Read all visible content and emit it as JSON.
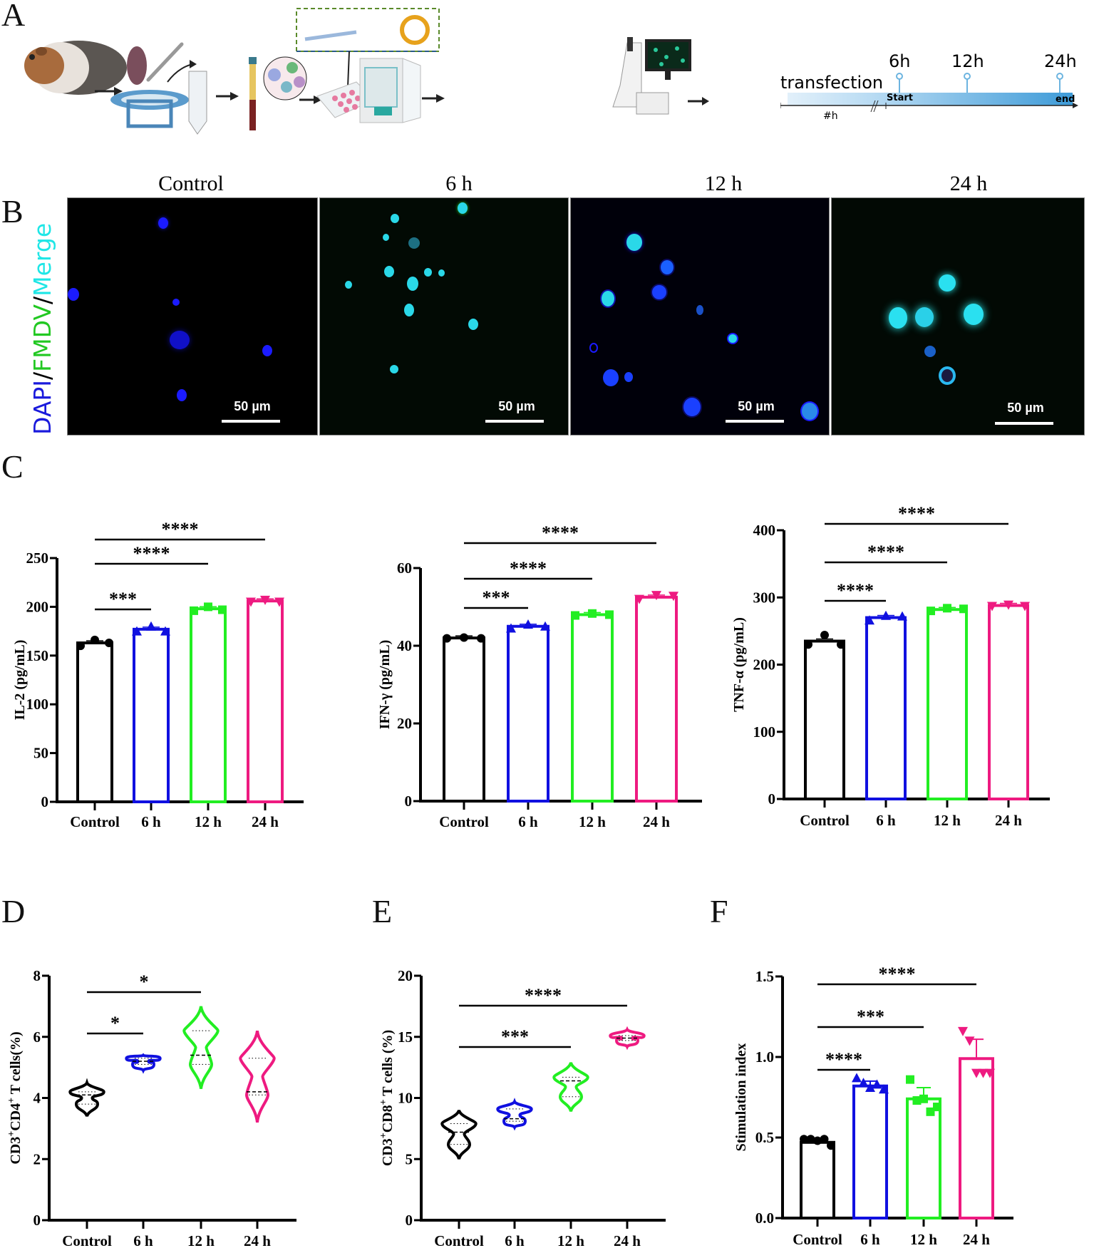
{
  "panels": {
    "A": {
      "letter": "A",
      "timeline": {
        "phase_label": "transfection",
        "pre_duration": "#h",
        "start_label": "Start",
        "end_label": "end",
        "markers": [
          "6h",
          "12h",
          "24h"
        ]
      },
      "workflow_steps": [
        "guinea-pig",
        "spleen-and-cell-strainer",
        "centrifuge-tube",
        "blood-tube-with-lymphocytes",
        "culture-plate-with-plasmid",
        "incubator",
        "fluorescence-microscope"
      ]
    },
    "B": {
      "letter": "B",
      "stain_label": {
        "dapi": "DAPI",
        "sep1": "/",
        "fmdv": "FMDV",
        "sep2": "/",
        "merge": "Merge"
      },
      "stain_colors": {
        "dapi": "#1a1adc",
        "fmdv": "#22c822",
        "merge": "#1ee6e6"
      },
      "images": [
        {
          "title": "Control",
          "scale_bar": "50 µm"
        },
        {
          "title": "6 h",
          "scale_bar": "50 µm"
        },
        {
          "title": "12 h",
          "scale_bar": "50 µm"
        },
        {
          "title": "24 h",
          "scale_bar": "50 µm"
        }
      ]
    },
    "C": {
      "letter": "C"
    },
    "D": {
      "letter": "D"
    },
    "E": {
      "letter": "E"
    },
    "F": {
      "letter": "F"
    }
  },
  "colors": {
    "Control": "#000000",
    "6 h": "#1010e0",
    "12 h": "#22ee22",
    "24 h": "#ee1a80"
  },
  "chart_data": [
    {
      "id": "C-IL2",
      "panel": "C",
      "type": "bar",
      "title": "",
      "xlabel": "",
      "ylabel": "IL-2 (pg/mL)",
      "categories": [
        "Control",
        "6 h",
        "12 h",
        "24 h"
      ],
      "values": [
        163,
        177,
        198,
        206
      ],
      "points": [
        [
          160,
          166,
          163
        ],
        [
          175,
          180,
          175
        ],
        [
          196,
          200,
          197
        ],
        [
          205,
          207,
          205
        ]
      ],
      "markers": [
        "circle",
        "triangle",
        "square",
        "triangle-down"
      ],
      "ylim": [
        0,
        250
      ],
      "yticks": [
        0,
        50,
        100,
        150,
        200,
        250
      ],
      "significance": [
        {
          "from": "Control",
          "to": "6 h",
          "label": "***"
        },
        {
          "from": "Control",
          "to": "12 h",
          "label": "****"
        },
        {
          "from": "Control",
          "to": "24 h",
          "label": "****"
        }
      ],
      "grid": false
    },
    {
      "id": "C-IFNg",
      "panel": "C",
      "type": "bar",
      "title": "",
      "xlabel": "",
      "ylabel": "IFN-γ (pg/mL)",
      "categories": [
        "Control",
        "6 h",
        "12 h",
        "24 h"
      ],
      "values": [
        42,
        45,
        48,
        52.5
      ],
      "points": [
        [
          41.9,
          42.1,
          41.9
        ],
        [
          44.5,
          45.5,
          45.0
        ],
        [
          47.8,
          48.3,
          48.0
        ],
        [
          52.0,
          53.0,
          52.8
        ]
      ],
      "markers": [
        "circle",
        "triangle",
        "square",
        "triangle-down"
      ],
      "ylim": [
        0,
        60
      ],
      "yticks": [
        0,
        20,
        40,
        60
      ],
      "significance": [
        {
          "from": "Control",
          "to": "6 h",
          "label": "***"
        },
        {
          "from": "Control",
          "to": "12 h",
          "label": "****"
        },
        {
          "from": "Control",
          "to": "24 h",
          "label": "****"
        }
      ],
      "grid": false
    },
    {
      "id": "C-TNFa",
      "panel": "C",
      "type": "bar",
      "title": "",
      "xlabel": "",
      "ylabel": "TNF-α (pg/mL)",
      "categories": [
        "Control",
        "6 h",
        "12 h",
        "24 h"
      ],
      "values": [
        235,
        270,
        282,
        288
      ],
      "points": [
        [
          230,
          244,
          230
        ],
        [
          266,
          273,
          272
        ],
        [
          280,
          284,
          283
        ],
        [
          287,
          289,
          287
        ]
      ],
      "markers": [
        "circle",
        "triangle",
        "square",
        "triangle-down"
      ],
      "ylim": [
        0,
        400
      ],
      "yticks": [
        0,
        100,
        200,
        300,
        400
      ],
      "significance": [
        {
          "from": "Control",
          "to": "6 h",
          "label": "****"
        },
        {
          "from": "Control",
          "to": "12 h",
          "label": "****"
        },
        {
          "from": "Control",
          "to": "24 h",
          "label": "****"
        }
      ],
      "grid": false
    },
    {
      "id": "D-CD4",
      "panel": "D",
      "type": "violin",
      "title": "",
      "xlabel": "",
      "ylabel": "CD3+CD4+ T cells(%)",
      "categories": [
        "Control",
        "6 h",
        "12 h",
        "24 h"
      ],
      "median": [
        4.1,
        5.2,
        5.4,
        4.2
      ],
      "q1": [
        3.8,
        5.1,
        5.1,
        4.1
      ],
      "q3": [
        4.2,
        5.3,
        6.2,
        5.3
      ],
      "range": [
        [
          3.4,
          4.5
        ],
        [
          4.9,
          5.4
        ],
        [
          4.3,
          7.0
        ],
        [
          3.2,
          6.2
        ]
      ],
      "ylim": [
        0,
        8
      ],
      "yticks": [
        0,
        2,
        4,
        6,
        8
      ],
      "significance": [
        {
          "from": "Control",
          "to": "6 h",
          "label": "*"
        },
        {
          "from": "Control",
          "to": "12 h",
          "label": "*"
        }
      ],
      "grid": false
    },
    {
      "id": "E-CD8",
      "panel": "E",
      "type": "violin",
      "title": "",
      "xlabel": "",
      "ylabel": "CD3+CD8+ T cells (%)",
      "categories": [
        "Control",
        "6 h",
        "12 h",
        "24 h"
      ],
      "median": [
        7.2,
        8.3,
        11.4,
        14.9
      ],
      "q1": [
        6.2,
        8.1,
        10.1,
        14.7
      ],
      "q3": [
        7.9,
        9.1,
        11.7,
        15.1
      ],
      "range": [
        [
          5.0,
          9.0
        ],
        [
          7.6,
          9.7
        ],
        [
          8.9,
          12.9
        ],
        [
          14.2,
          15.6
        ]
      ],
      "ylim": [
        0,
        20
      ],
      "yticks": [
        0,
        5,
        10,
        15,
        20
      ],
      "significance": [
        {
          "from": "Control",
          "to": "12 h",
          "label": "***"
        },
        {
          "from": "Control",
          "to": "24 h",
          "label": "****"
        }
      ],
      "grid": false
    },
    {
      "id": "F-SI",
      "panel": "F",
      "type": "bar",
      "title": "",
      "xlabel": "",
      "ylabel": "Stimulation index",
      "categories": [
        "Control",
        "6 h",
        "12 h",
        "24 h"
      ],
      "values": [
        0.47,
        0.82,
        0.74,
        0.99
      ],
      "error": [
        0.01,
        0.03,
        0.07,
        0.12
      ],
      "points": [
        [
          0.49,
          0.49,
          0.48,
          0.49,
          0.45
        ],
        [
          0.87,
          0.84,
          0.81,
          0.83,
          0.8
        ],
        [
          0.86,
          0.73,
          0.74,
          0.66,
          0.69
        ],
        [
          1.16,
          1.1,
          0.9,
          0.9,
          0.9
        ]
      ],
      "markers": [
        "circle",
        "triangle",
        "square",
        "triangle-down"
      ],
      "ylim": [
        0,
        1.5
      ],
      "yticks": [
        "0.0",
        "0.5",
        "1.0",
        "1.5"
      ],
      "significance": [
        {
          "from": "Control",
          "to": "6 h",
          "label": "****"
        },
        {
          "from": "Control",
          "to": "12 h",
          "label": "***"
        },
        {
          "from": "Control",
          "to": "24 h",
          "label": "****"
        }
      ],
      "grid": false
    }
  ]
}
